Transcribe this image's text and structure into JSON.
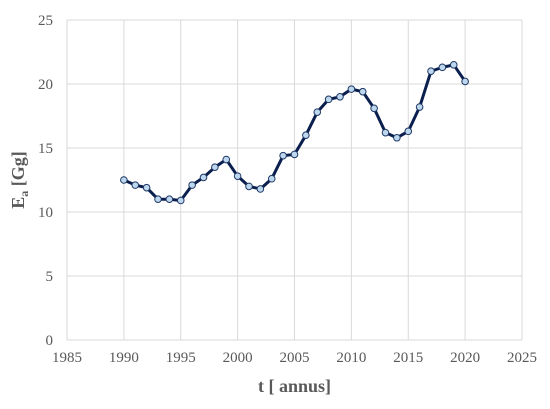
{
  "chart_data": {
    "type": "line",
    "title": "",
    "xlabel": "t [ annus]",
    "ylabel_main": "E",
    "ylabel_sub": "a",
    "ylabel_unit": " [Gg]",
    "xlim": [
      1985,
      2025
    ],
    "ylim": [
      0,
      25
    ],
    "x_ticks": [
      1985,
      1990,
      1995,
      2000,
      2005,
      2010,
      2015,
      2020,
      2025
    ],
    "y_ticks": [
      0,
      5,
      10,
      15,
      20,
      25
    ],
    "grid": true,
    "legend": "none",
    "colors": {
      "line": "#0b1f4f",
      "marker_fill": "#bdd7ee",
      "marker_stroke": "#1f3864",
      "grid": "#d9d9d9",
      "tick_text": "#595959"
    },
    "series": [
      {
        "x": [
          1990,
          1991,
          1992,
          1993,
          1994,
          1995,
          1996,
          1997,
          1998,
          1999,
          2000,
          2001,
          2002,
          2003,
          2004,
          2005,
          2006,
          2007,
          2008,
          2009,
          2010,
          2011,
          2012,
          2013,
          2014,
          2015,
          2016,
          2017,
          2018,
          2019,
          2020
        ],
        "y": [
          12.5,
          12.1,
          11.9,
          11.0,
          11.0,
          10.9,
          12.1,
          12.7,
          13.5,
          14.1,
          12.8,
          12.0,
          11.8,
          12.6,
          14.4,
          14.5,
          16.0,
          17.8,
          18.8,
          19.0,
          19.6,
          19.4,
          18.1,
          16.2,
          15.8,
          16.3,
          18.2,
          21.0,
          21.3,
          21.5,
          20.2
        ]
      }
    ]
  }
}
